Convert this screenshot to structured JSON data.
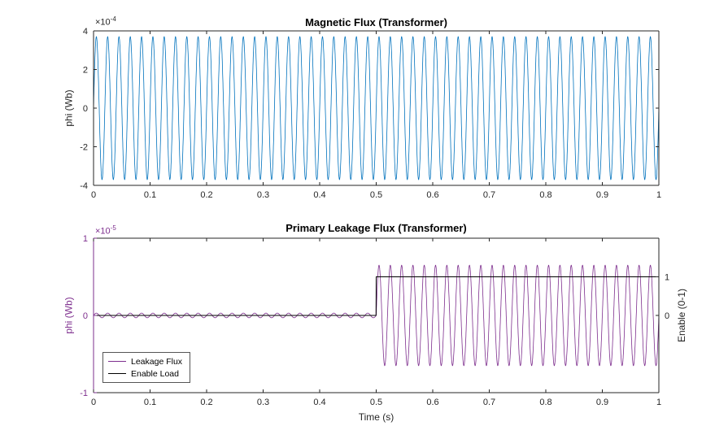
{
  "figure": {
    "background": "#ffffff",
    "axis_color": "#262626"
  },
  "chart_data": [
    {
      "type": "line",
      "title": "Magnetic Flux (Transformer)",
      "ylabel": "phi (Wb)",
      "scale_label": {
        "base": "×10",
        "exp": "-4"
      },
      "scale_color": "#262626",
      "xlim": [
        0,
        1
      ],
      "ylim": [
        -4,
        4
      ],
      "grid": false,
      "xtick_values": [
        0,
        0.1,
        0.2,
        0.3,
        0.4,
        0.5,
        0.6,
        0.7,
        0.8,
        0.9,
        1
      ],
      "xtick_labels": [
        "0",
        "0.1",
        "0.2",
        "0.3",
        "0.4",
        "0.5",
        "0.6",
        "0.7",
        "0.8",
        "0.9",
        "1"
      ],
      "ytick_values": [
        -4,
        -2,
        0,
        2,
        4
      ],
      "ytick_labels": [
        "-4",
        "-2",
        "0",
        "2",
        "4"
      ],
      "ytick_color": "#262626",
      "axis_colors": {
        "left": "#262626",
        "right": "#262626"
      },
      "series": [
        {
          "name": "Magnetic Flux",
          "color": "#0072BD",
          "width": 0.8,
          "axis": "left",
          "waveform": {
            "kind": "sine",
            "amplitude": 3.7,
            "frequency": 50,
            "phase_deg": 0,
            "offset": 0
          }
        }
      ]
    },
    {
      "type": "line",
      "title": "Primary Leakage Flux (Transformer)",
      "xlabel": "Time (s)",
      "ylabel": "phi (Wb)",
      "ylabel_color": "#7E2F8E",
      "scale_label": {
        "base": "×10",
        "exp": "-5"
      },
      "scale_color": "#7E2F8E",
      "xlim": [
        0,
        1
      ],
      "ylim": [
        -1,
        1
      ],
      "grid": false,
      "xtick_values": [
        0,
        0.1,
        0.2,
        0.3,
        0.4,
        0.5,
        0.6,
        0.7,
        0.8,
        0.9,
        1
      ],
      "xtick_labels": [
        "0",
        "0.1",
        "0.2",
        "0.3",
        "0.4",
        "0.5",
        "0.6",
        "0.7",
        "0.8",
        "0.9",
        "1"
      ],
      "ytick_values": [
        -1,
        0,
        1
      ],
      "ytick_labels": [
        "-1",
        "0",
        "1"
      ],
      "ytick_color": "#7E2F8E",
      "axis_colors": {
        "left": "#7E2F8E",
        "right": "#262626"
      },
      "right_axis": {
        "label": "Enable (0-1)",
        "ylim": [
          -2,
          2
        ],
        "tick_values": [
          0,
          1
        ],
        "tick_labels": [
          "0",
          "1"
        ],
        "tick_color": "#262626"
      },
      "legend": {
        "position": "southwest",
        "entries": [
          {
            "label": "Leakage Flux",
            "color": "#7E2F8E"
          },
          {
            "label": "Enable Load",
            "color": "#000000"
          }
        ]
      },
      "series": [
        {
          "name": "Leakage Flux",
          "color": "#7E2F8E",
          "width": 0.8,
          "axis": "left",
          "waveform": {
            "kind": "gated_sine",
            "amplitude_before": 0.03,
            "amplitude_after": 0.65,
            "gate_time": 0.5,
            "frequency": 50,
            "phase_deg": 0
          }
        },
        {
          "name": "Enable Load",
          "color": "#000000",
          "width": 1,
          "axis": "right",
          "waveform": {
            "kind": "step",
            "low": 0,
            "high": 1,
            "step_time": 0.5
          }
        }
      ]
    }
  ]
}
